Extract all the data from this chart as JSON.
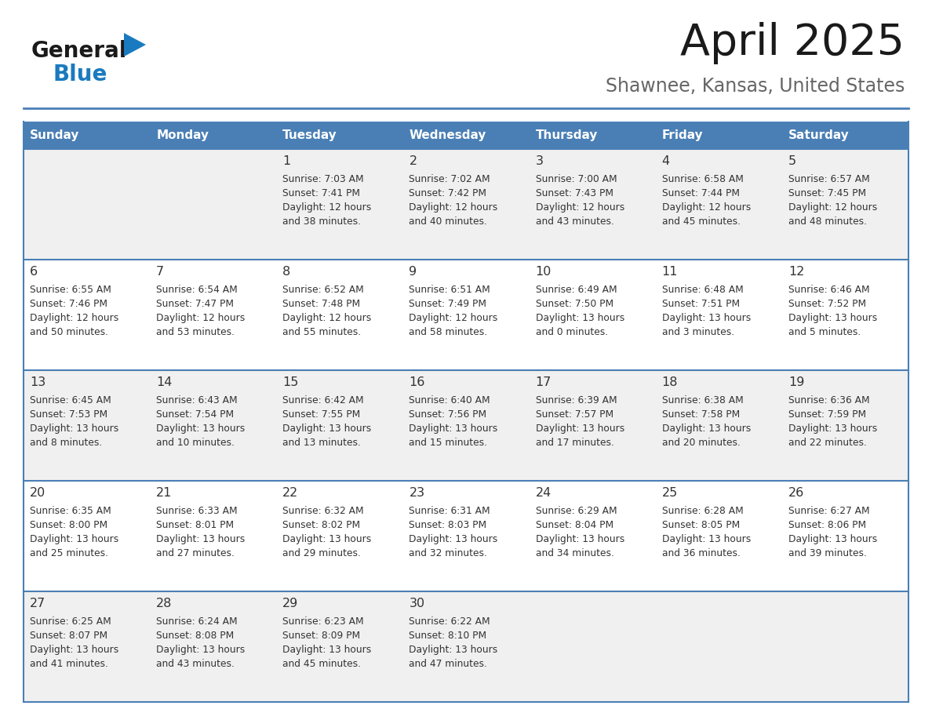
{
  "title": "April 2025",
  "subtitle": "Shawnee, Kansas, United States",
  "header_bg": "#4a7fb5",
  "header_text_color": "#ffffff",
  "row_bg_even": "#f0f0f0",
  "row_bg_odd": "#ffffff",
  "day_headers": [
    "Sunday",
    "Monday",
    "Tuesday",
    "Wednesday",
    "Thursday",
    "Friday",
    "Saturday"
  ],
  "days": [
    {
      "date": 1,
      "col": 2,
      "row": 0,
      "sunrise": "7:03 AM",
      "sunset": "7:41 PM",
      "daylight_hours": 12,
      "daylight_minutes": 38
    },
    {
      "date": 2,
      "col": 3,
      "row": 0,
      "sunrise": "7:02 AM",
      "sunset": "7:42 PM",
      "daylight_hours": 12,
      "daylight_minutes": 40
    },
    {
      "date": 3,
      "col": 4,
      "row": 0,
      "sunrise": "7:00 AM",
      "sunset": "7:43 PM",
      "daylight_hours": 12,
      "daylight_minutes": 43
    },
    {
      "date": 4,
      "col": 5,
      "row": 0,
      "sunrise": "6:58 AM",
      "sunset": "7:44 PM",
      "daylight_hours": 12,
      "daylight_minutes": 45
    },
    {
      "date": 5,
      "col": 6,
      "row": 0,
      "sunrise": "6:57 AM",
      "sunset": "7:45 PM",
      "daylight_hours": 12,
      "daylight_minutes": 48
    },
    {
      "date": 6,
      "col": 0,
      "row": 1,
      "sunrise": "6:55 AM",
      "sunset": "7:46 PM",
      "daylight_hours": 12,
      "daylight_minutes": 50
    },
    {
      "date": 7,
      "col": 1,
      "row": 1,
      "sunrise": "6:54 AM",
      "sunset": "7:47 PM",
      "daylight_hours": 12,
      "daylight_minutes": 53
    },
    {
      "date": 8,
      "col": 2,
      "row": 1,
      "sunrise": "6:52 AM",
      "sunset": "7:48 PM",
      "daylight_hours": 12,
      "daylight_minutes": 55
    },
    {
      "date": 9,
      "col": 3,
      "row": 1,
      "sunrise": "6:51 AM",
      "sunset": "7:49 PM",
      "daylight_hours": 12,
      "daylight_minutes": 58
    },
    {
      "date": 10,
      "col": 4,
      "row": 1,
      "sunrise": "6:49 AM",
      "sunset": "7:50 PM",
      "daylight_hours": 13,
      "daylight_minutes": 0
    },
    {
      "date": 11,
      "col": 5,
      "row": 1,
      "sunrise": "6:48 AM",
      "sunset": "7:51 PM",
      "daylight_hours": 13,
      "daylight_minutes": 3
    },
    {
      "date": 12,
      "col": 6,
      "row": 1,
      "sunrise": "6:46 AM",
      "sunset": "7:52 PM",
      "daylight_hours": 13,
      "daylight_minutes": 5
    },
    {
      "date": 13,
      "col": 0,
      "row": 2,
      "sunrise": "6:45 AM",
      "sunset": "7:53 PM",
      "daylight_hours": 13,
      "daylight_minutes": 8
    },
    {
      "date": 14,
      "col": 1,
      "row": 2,
      "sunrise": "6:43 AM",
      "sunset": "7:54 PM",
      "daylight_hours": 13,
      "daylight_minutes": 10
    },
    {
      "date": 15,
      "col": 2,
      "row": 2,
      "sunrise": "6:42 AM",
      "sunset": "7:55 PM",
      "daylight_hours": 13,
      "daylight_minutes": 13
    },
    {
      "date": 16,
      "col": 3,
      "row": 2,
      "sunrise": "6:40 AM",
      "sunset": "7:56 PM",
      "daylight_hours": 13,
      "daylight_minutes": 15
    },
    {
      "date": 17,
      "col": 4,
      "row": 2,
      "sunrise": "6:39 AM",
      "sunset": "7:57 PM",
      "daylight_hours": 13,
      "daylight_minutes": 17
    },
    {
      "date": 18,
      "col": 5,
      "row": 2,
      "sunrise": "6:38 AM",
      "sunset": "7:58 PM",
      "daylight_hours": 13,
      "daylight_minutes": 20
    },
    {
      "date": 19,
      "col": 6,
      "row": 2,
      "sunrise": "6:36 AM",
      "sunset": "7:59 PM",
      "daylight_hours": 13,
      "daylight_minutes": 22
    },
    {
      "date": 20,
      "col": 0,
      "row": 3,
      "sunrise": "6:35 AM",
      "sunset": "8:00 PM",
      "daylight_hours": 13,
      "daylight_minutes": 25
    },
    {
      "date": 21,
      "col": 1,
      "row": 3,
      "sunrise": "6:33 AM",
      "sunset": "8:01 PM",
      "daylight_hours": 13,
      "daylight_minutes": 27
    },
    {
      "date": 22,
      "col": 2,
      "row": 3,
      "sunrise": "6:32 AM",
      "sunset": "8:02 PM",
      "daylight_hours": 13,
      "daylight_minutes": 29
    },
    {
      "date": 23,
      "col": 3,
      "row": 3,
      "sunrise": "6:31 AM",
      "sunset": "8:03 PM",
      "daylight_hours": 13,
      "daylight_minutes": 32
    },
    {
      "date": 24,
      "col": 4,
      "row": 3,
      "sunrise": "6:29 AM",
      "sunset": "8:04 PM",
      "daylight_hours": 13,
      "daylight_minutes": 34
    },
    {
      "date": 25,
      "col": 5,
      "row": 3,
      "sunrise": "6:28 AM",
      "sunset": "8:05 PM",
      "daylight_hours": 13,
      "daylight_minutes": 36
    },
    {
      "date": 26,
      "col": 6,
      "row": 3,
      "sunrise": "6:27 AM",
      "sunset": "8:06 PM",
      "daylight_hours": 13,
      "daylight_minutes": 39
    },
    {
      "date": 27,
      "col": 0,
      "row": 4,
      "sunrise": "6:25 AM",
      "sunset": "8:07 PM",
      "daylight_hours": 13,
      "daylight_minutes": 41
    },
    {
      "date": 28,
      "col": 1,
      "row": 4,
      "sunrise": "6:24 AM",
      "sunset": "8:08 PM",
      "daylight_hours": 13,
      "daylight_minutes": 43
    },
    {
      "date": 29,
      "col": 2,
      "row": 4,
      "sunrise": "6:23 AM",
      "sunset": "8:09 PM",
      "daylight_hours": 13,
      "daylight_minutes": 45
    },
    {
      "date": 30,
      "col": 3,
      "row": 4,
      "sunrise": "6:22 AM",
      "sunset": "8:10 PM",
      "daylight_hours": 13,
      "daylight_minutes": 47
    }
  ],
  "num_rows": 5,
  "num_cols": 7,
  "logo_general_color": "#1a1a1a",
  "logo_blue_color": "#1a7abf",
  "logo_triangle_color": "#1a7abf",
  "title_color": "#1a1a1a",
  "subtitle_color": "#666666",
  "cell_border_color": "#4a7fb5",
  "cell_text_color": "#333333",
  "date_number_color": "#333333"
}
